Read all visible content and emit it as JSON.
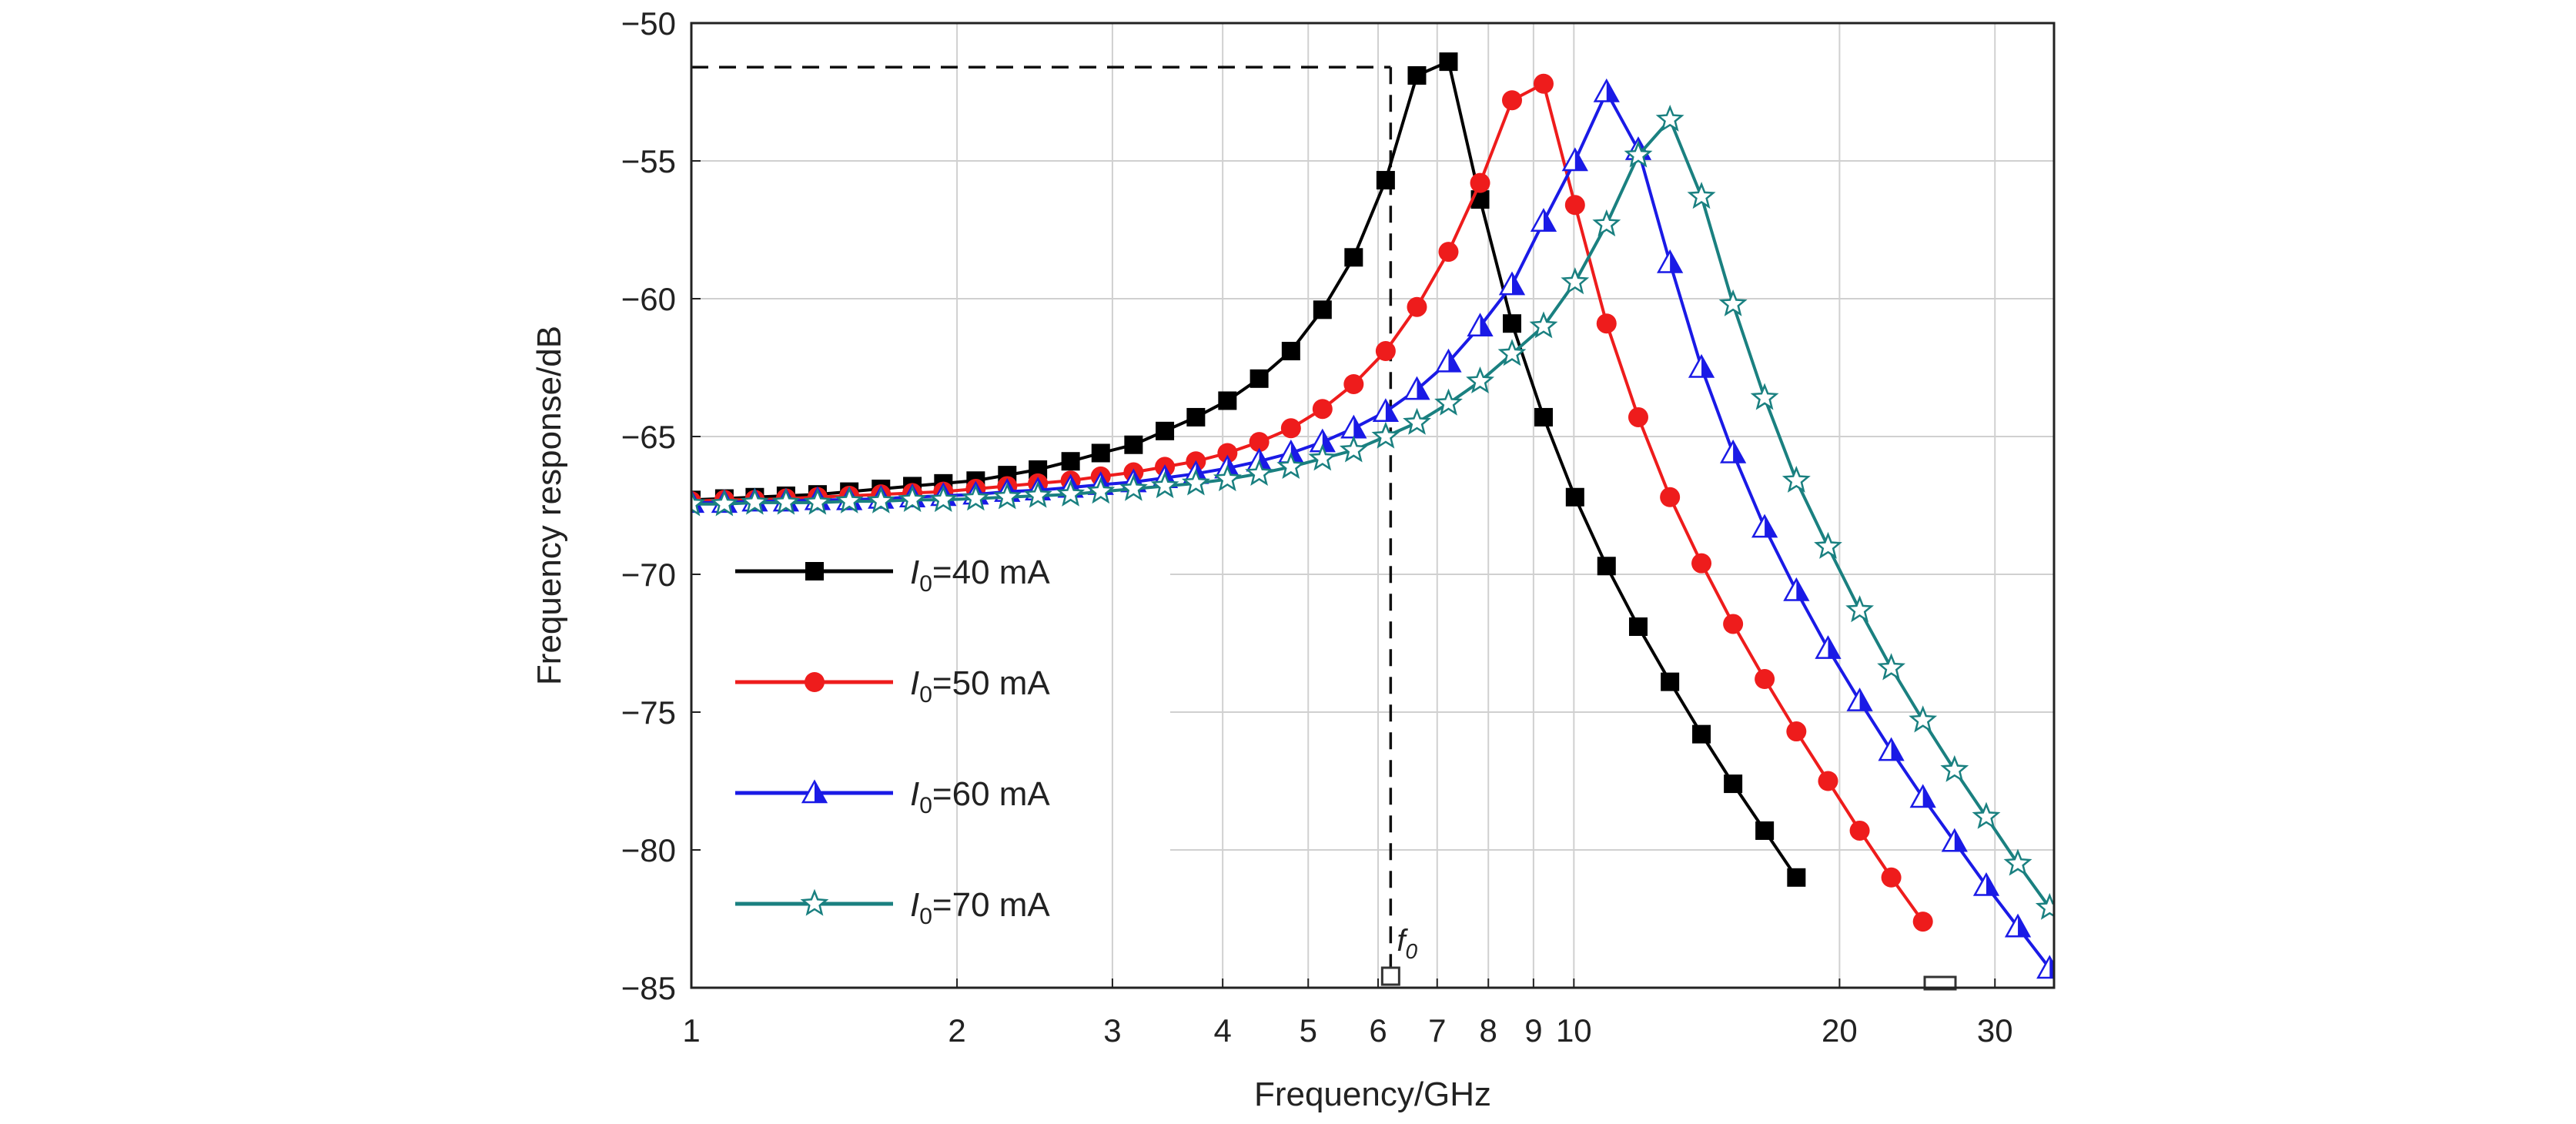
{
  "chart_data": {
    "type": "line",
    "title": "",
    "xlabel": "Frequency/GHz",
    "ylabel": "Frequency response/dB",
    "x_scale": "log",
    "xlim": [
      1,
      35
    ],
    "ylim": [
      -85,
      -50
    ],
    "x_ticks": [
      1,
      2,
      3,
      4,
      5,
      6,
      7,
      8,
      9,
      10,
      20,
      30
    ],
    "x_tick_labels": [
      "1",
      "2",
      "3",
      "4",
      "5",
      "6",
      "7",
      "8",
      "9",
      "10",
      "20",
      "30"
    ],
    "y_ticks": [
      -50,
      -55,
      -60,
      -65,
      -70,
      -75,
      -80,
      -85
    ],
    "y_tick_labels": [
      "−50",
      "−55",
      "−60",
      "−65",
      "−70",
      "−75",
      "−80",
      "−85"
    ],
    "grid": true,
    "legend_position": "middle-left",
    "annotation": {
      "label": "f",
      "subscript": "0",
      "x": 6.2,
      "y": -51.6,
      "dashed_guides": true
    },
    "series": [
      {
        "name": "I0=40 mA",
        "legend_main": "I",
        "legend_sub": "0",
        "legend_rest": "=40 mA",
        "color": "#000000",
        "marker": "square",
        "x": [
          1.0,
          1.09,
          1.18,
          1.28,
          1.39,
          1.51,
          1.64,
          1.78,
          1.93,
          2.1,
          2.28,
          2.47,
          2.69,
          2.91,
          3.17,
          3.44,
          3.73,
          4.05,
          4.4,
          4.78,
          5.19,
          5.63,
          6.12,
          6.64,
          7.21,
          7.83,
          8.51,
          9.24,
          10.03,
          10.89,
          11.83,
          12.85,
          13.95,
          15.15,
          16.45,
          17.87
        ],
        "y": [
          -67.3,
          -67.25,
          -67.2,
          -67.15,
          -67.1,
          -67.0,
          -66.9,
          -66.8,
          -66.7,
          -66.6,
          -66.4,
          -66.2,
          -65.9,
          -65.6,
          -65.3,
          -64.8,
          -64.3,
          -63.7,
          -62.9,
          -61.9,
          -60.4,
          -58.5,
          -55.7,
          -51.9,
          -51.4,
          -56.4,
          -60.9,
          -64.3,
          -67.2,
          -69.7,
          -71.9,
          -73.9,
          -75.8,
          -77.6,
          -79.3,
          -81.0
        ]
      },
      {
        "name": "I0=50 mA",
        "legend_main": "I",
        "legend_sub": "0",
        "legend_rest": "=50 mA",
        "color": "#ee1c1c",
        "marker": "circle",
        "x": [
          1.0,
          1.09,
          1.18,
          1.28,
          1.39,
          1.51,
          1.64,
          1.78,
          1.93,
          2.1,
          2.28,
          2.47,
          2.69,
          2.91,
          3.17,
          3.44,
          3.73,
          4.05,
          4.4,
          4.78,
          5.19,
          5.63,
          6.12,
          6.64,
          7.21,
          7.83,
          8.51,
          9.24,
          10.03,
          10.89,
          11.83,
          12.85,
          13.95,
          15.15,
          16.45,
          17.87,
          19.41,
          21.08,
          22.89,
          24.86
        ],
        "y": [
          -67.35,
          -67.3,
          -67.3,
          -67.25,
          -67.2,
          -67.15,
          -67.1,
          -67.05,
          -67.0,
          -66.9,
          -66.8,
          -66.7,
          -66.6,
          -66.45,
          -66.3,
          -66.1,
          -65.9,
          -65.6,
          -65.2,
          -64.7,
          -64.0,
          -63.1,
          -61.9,
          -60.3,
          -58.3,
          -55.8,
          -52.8,
          -52.2,
          -56.6,
          -60.9,
          -64.3,
          -67.2,
          -69.6,
          -71.8,
          -73.8,
          -75.7,
          -77.5,
          -79.3,
          -81.0,
          -82.6
        ]
      },
      {
        "name": "I0=60 mA",
        "legend_main": "I",
        "legend_sub": "0",
        "legend_rest": "=60 mA",
        "color": "#1a1ae6",
        "marker": "triangle",
        "x": [
          1.0,
          1.09,
          1.18,
          1.28,
          1.39,
          1.51,
          1.64,
          1.78,
          1.93,
          2.1,
          2.28,
          2.47,
          2.69,
          2.91,
          3.17,
          3.44,
          3.73,
          4.05,
          4.4,
          4.78,
          5.19,
          5.63,
          6.12,
          6.64,
          7.21,
          7.83,
          8.51,
          9.24,
          10.03,
          10.89,
          11.83,
          12.85,
          13.95,
          15.15,
          16.45,
          17.87,
          19.41,
          21.08,
          22.89,
          24.86,
          27.0,
          29.33,
          31.85,
          34.6
        ],
        "y": [
          -67.4,
          -67.4,
          -67.35,
          -67.35,
          -67.3,
          -67.3,
          -67.25,
          -67.2,
          -67.15,
          -67.1,
          -67.0,
          -66.95,
          -66.85,
          -66.75,
          -66.65,
          -66.5,
          -66.35,
          -66.15,
          -65.9,
          -65.6,
          -65.2,
          -64.7,
          -64.1,
          -63.3,
          -62.3,
          -61.0,
          -59.5,
          -57.2,
          -55.0,
          -52.5,
          -54.6,
          -58.7,
          -62.5,
          -65.6,
          -68.3,
          -70.6,
          -72.7,
          -74.6,
          -76.4,
          -78.1,
          -79.7,
          -81.3,
          -82.8,
          -84.3
        ]
      },
      {
        "name": "I0=70 mA",
        "legend_main": "I",
        "legend_sub": "0",
        "legend_rest": "=70 mA",
        "color": "#1a8080",
        "marker": "star",
        "x": [
          1.0,
          1.09,
          1.18,
          1.28,
          1.39,
          1.51,
          1.64,
          1.78,
          1.93,
          2.1,
          2.28,
          2.47,
          2.69,
          2.91,
          3.17,
          3.44,
          3.73,
          4.05,
          4.4,
          4.78,
          5.19,
          5.63,
          6.12,
          6.64,
          7.21,
          7.83,
          8.51,
          9.24,
          10.03,
          10.89,
          11.83,
          12.85,
          13.95,
          15.15,
          16.45,
          17.87,
          19.41,
          21.08,
          22.89,
          24.86,
          27.0,
          29.33,
          31.85,
          34.6
        ],
        "y": [
          -67.45,
          -67.45,
          -67.4,
          -67.4,
          -67.4,
          -67.35,
          -67.35,
          -67.3,
          -67.3,
          -67.25,
          -67.2,
          -67.15,
          -67.1,
          -67.0,
          -66.9,
          -66.8,
          -66.7,
          -66.55,
          -66.35,
          -66.1,
          -65.8,
          -65.5,
          -65.0,
          -64.5,
          -63.8,
          -63.0,
          -62.0,
          -61.0,
          -59.4,
          -57.3,
          -54.8,
          -53.5,
          -56.3,
          -60.2,
          -63.6,
          -66.6,
          -69.0,
          -71.3,
          -73.4,
          -75.3,
          -77.1,
          -78.8,
          -80.5,
          -82.1
        ]
      }
    ]
  }
}
